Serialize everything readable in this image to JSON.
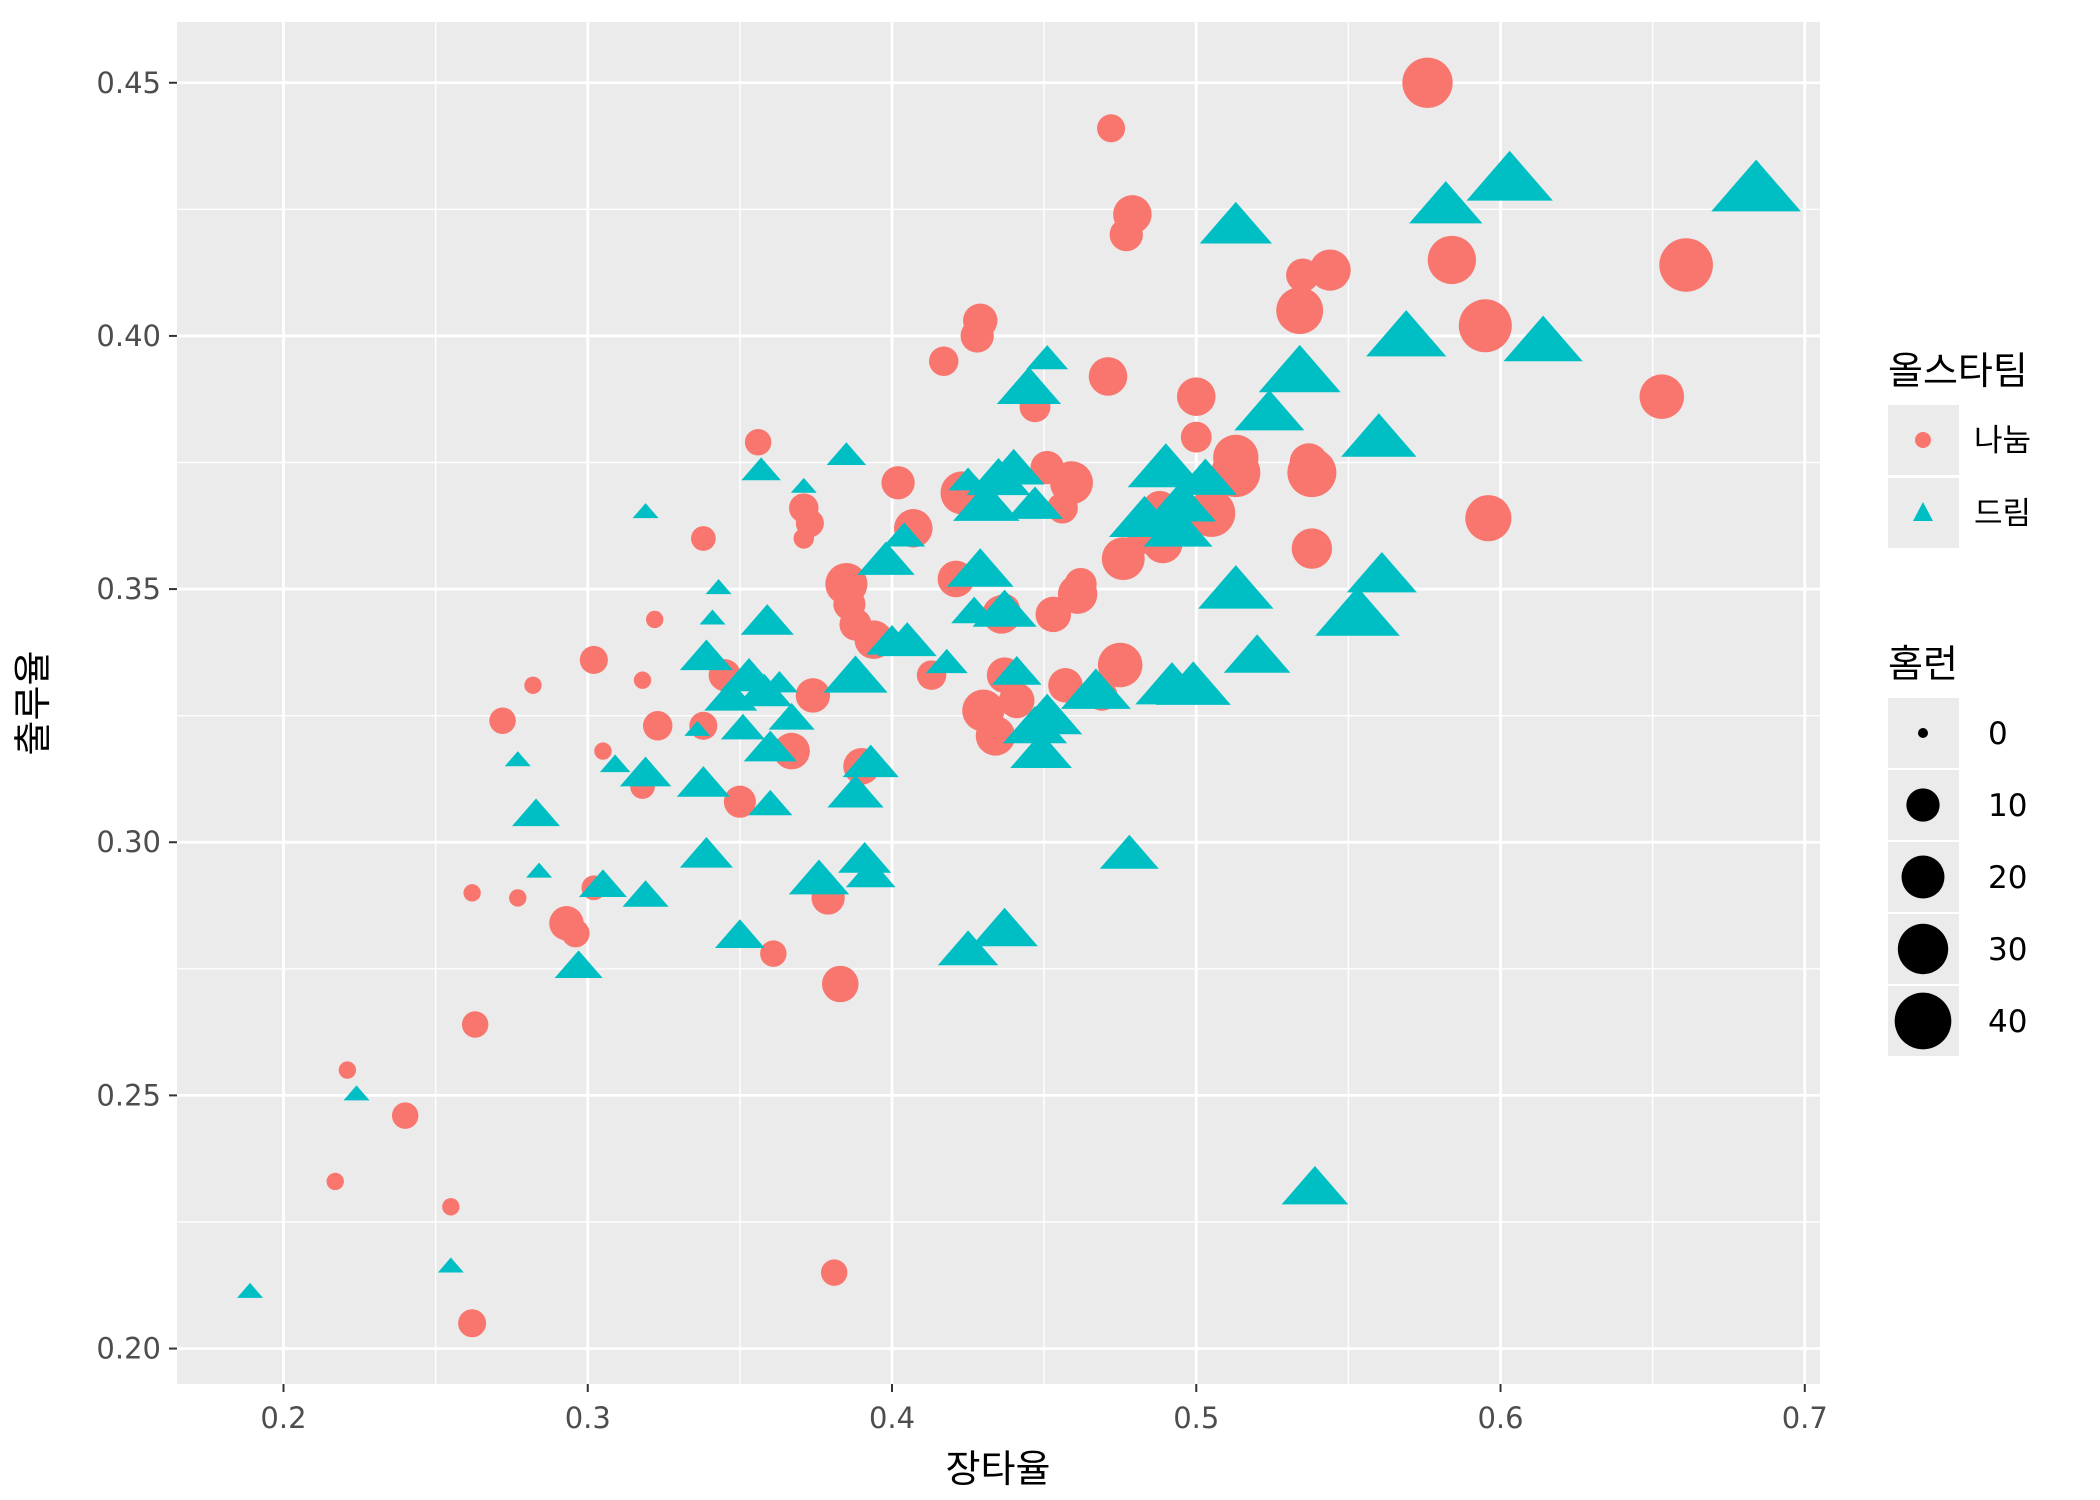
{
  "chart_data": {
    "type": "scatter",
    "title": "",
    "xlabel": "장타율",
    "ylabel": "출루율",
    "xlim": [
      0.165,
      0.705
    ],
    "ylim": [
      0.193,
      0.462
    ],
    "x_ticks": [
      0.2,
      0.3,
      0.4,
      0.5,
      0.6,
      0.7
    ],
    "x_tick_labels": [
      "0.2",
      "0.3",
      "0.4",
      "0.5",
      "0.6",
      "0.7"
    ],
    "y_ticks": [
      0.2,
      0.25,
      0.3,
      0.35,
      0.4,
      0.45
    ],
    "y_tick_labels": [
      "0.20",
      "0.25",
      "0.30",
      "0.35",
      "0.40",
      "0.45"
    ],
    "grid": true,
    "legend_position": "right",
    "color_legend": {
      "title": "올스타팀",
      "entries": [
        {
          "label": "나눔",
          "shape": "circle",
          "color": "#F8766D"
        },
        {
          "label": "드림",
          "shape": "triangle",
          "color": "#00BFC4"
        }
      ]
    },
    "size_legend": {
      "title": "홈런",
      "entries": [
        {
          "label": "0",
          "value": 0
        },
        {
          "label": "10",
          "value": 10
        },
        {
          "label": "20",
          "value": 20
        },
        {
          "label": "30",
          "value": 30
        },
        {
          "label": "40",
          "value": 40
        }
      ]
    },
    "series": [
      {
        "name": "나눔",
        "shape": "circle",
        "color": "#F8766D",
        "points": [
          [
            0.576,
            0.45,
            30
          ],
          [
            0.472,
            0.441,
            6
          ],
          [
            0.479,
            0.424,
            15
          ],
          [
            0.477,
            0.42,
            10
          ],
          [
            0.544,
            0.413,
            18
          ],
          [
            0.535,
            0.412,
            10
          ],
          [
            0.584,
            0.415,
            27
          ],
          [
            0.661,
            0.414,
            35
          ],
          [
            0.534,
            0.405,
            25
          ],
          [
            0.595,
            0.402,
            34
          ],
          [
            0.429,
            0.403,
            11
          ],
          [
            0.428,
            0.4,
            10
          ],
          [
            0.417,
            0.395,
            7
          ],
          [
            0.471,
            0.392,
            15
          ],
          [
            0.5,
            0.388,
            15
          ],
          [
            0.653,
            0.388,
            22
          ],
          [
            0.447,
            0.386,
            8
          ],
          [
            0.5,
            0.38,
            8
          ],
          [
            0.356,
            0.379,
            5
          ],
          [
            0.513,
            0.376,
            23
          ],
          [
            0.537,
            0.375,
            15
          ],
          [
            0.538,
            0.373,
            28
          ],
          [
            0.513,
            0.373,
            28
          ],
          [
            0.451,
            0.374,
            10
          ],
          [
            0.402,
            0.371,
            10
          ],
          [
            0.459,
            0.371,
            20
          ],
          [
            0.423,
            0.369,
            20
          ],
          [
            0.371,
            0.366,
            7
          ],
          [
            0.456,
            0.366,
            8
          ],
          [
            0.488,
            0.366,
            11
          ],
          [
            0.505,
            0.365,
            26
          ],
          [
            0.596,
            0.364,
            24
          ],
          [
            0.373,
            0.363,
            6
          ],
          [
            0.407,
            0.362,
            15
          ],
          [
            0.489,
            0.359,
            16
          ],
          [
            0.484,
            0.361,
            18
          ],
          [
            0.338,
            0.36,
            4
          ],
          [
            0.371,
            0.36,
            2
          ],
          [
            0.538,
            0.358,
            17
          ],
          [
            0.476,
            0.356,
            20
          ],
          [
            0.421,
            0.352,
            13
          ],
          [
            0.385,
            0.351,
            19
          ],
          [
            0.462,
            0.351,
            9
          ],
          [
            0.461,
            0.349,
            16
          ],
          [
            0.386,
            0.347,
            9
          ],
          [
            0.437,
            0.346,
            8
          ],
          [
            0.453,
            0.345,
            12
          ],
          [
            0.388,
            0.343,
            9
          ],
          [
            0.394,
            0.34,
            15
          ],
          [
            0.436,
            0.345,
            15
          ],
          [
            0.322,
            0.344,
            1
          ],
          [
            0.302,
            0.336,
            6
          ],
          [
            0.475,
            0.335,
            22
          ],
          [
            0.413,
            0.333,
            7
          ],
          [
            0.345,
            0.333,
            9
          ],
          [
            0.437,
            0.333,
            12
          ],
          [
            0.318,
            0.332,
            1
          ],
          [
            0.457,
            0.331,
            11
          ],
          [
            0.282,
            0.331,
            1
          ],
          [
            0.374,
            0.329,
            11
          ],
          [
            0.469,
            0.329,
            8
          ],
          [
            0.441,
            0.328,
            12
          ],
          [
            0.43,
            0.326,
            19
          ],
          [
            0.272,
            0.324,
            5
          ],
          [
            0.323,
            0.323,
            7
          ],
          [
            0.338,
            0.323,
            6
          ],
          [
            0.434,
            0.321,
            16
          ],
          [
            0.367,
            0.318,
            13
          ],
          [
            0.305,
            0.318,
            1
          ],
          [
            0.39,
            0.315,
            13
          ],
          [
            0.318,
            0.311,
            4
          ],
          [
            0.35,
            0.308,
            9
          ],
          [
            0.302,
            0.291,
            4
          ],
          [
            0.262,
            0.29,
            1
          ],
          [
            0.277,
            0.289,
            1
          ],
          [
            0.379,
            0.289,
            10
          ],
          [
            0.293,
            0.284,
            11
          ],
          [
            0.296,
            0.282,
            6
          ],
          [
            0.361,
            0.278,
            5
          ],
          [
            0.383,
            0.272,
            13
          ],
          [
            0.263,
            0.264,
            5
          ],
          [
            0.221,
            0.255,
            1
          ],
          [
            0.24,
            0.246,
            5
          ],
          [
            0.217,
            0.233,
            1
          ],
          [
            0.255,
            0.228,
            1
          ],
          [
            0.381,
            0.215,
            5
          ],
          [
            0.262,
            0.205,
            6
          ]
        ]
      },
      {
        "name": "드림",
        "shape": "triangle",
        "color": "#00BFC4",
        "points": [
          [
            0.603,
            0.43,
            42
          ],
          [
            0.684,
            0.428,
            46
          ],
          [
            0.582,
            0.425,
            28
          ],
          [
            0.513,
            0.421,
            27
          ],
          [
            0.569,
            0.399,
            35
          ],
          [
            0.614,
            0.398,
            34
          ],
          [
            0.451,
            0.395,
            6
          ],
          [
            0.534,
            0.392,
            37
          ],
          [
            0.445,
            0.389,
            20
          ],
          [
            0.524,
            0.384,
            25
          ],
          [
            0.56,
            0.379,
            30
          ],
          [
            0.385,
            0.376,
            5
          ],
          [
            0.44,
            0.373,
            18
          ],
          [
            0.435,
            0.371,
            20
          ],
          [
            0.49,
            0.373,
            31
          ],
          [
            0.503,
            0.371,
            19
          ],
          [
            0.425,
            0.371,
            5
          ],
          [
            0.357,
            0.373,
            5
          ],
          [
            0.371,
            0.37,
            1
          ],
          [
            0.431,
            0.366,
            22
          ],
          [
            0.447,
            0.366,
            14
          ],
          [
            0.495,
            0.366,
            25
          ],
          [
            0.494,
            0.361,
            24
          ],
          [
            0.404,
            0.36,
            6
          ],
          [
            0.319,
            0.365,
            1
          ],
          [
            0.483,
            0.363,
            26
          ],
          [
            0.398,
            0.355,
            15
          ],
          [
            0.561,
            0.352,
            25
          ],
          [
            0.429,
            0.353,
            22
          ],
          [
            0.513,
            0.349,
            30
          ],
          [
            0.343,
            0.35,
            1
          ],
          [
            0.553,
            0.344,
            40
          ],
          [
            0.437,
            0.345,
            20
          ],
          [
            0.427,
            0.345,
            8
          ],
          [
            0.359,
            0.343,
            12
          ],
          [
            0.341,
            0.344,
            1
          ],
          [
            0.405,
            0.339,
            16
          ],
          [
            0.4,
            0.339,
            11
          ],
          [
            0.52,
            0.336,
            22
          ],
          [
            0.339,
            0.336,
            12
          ],
          [
            0.418,
            0.335,
            6
          ],
          [
            0.441,
            0.333,
            10
          ],
          [
            0.388,
            0.332,
            20
          ],
          [
            0.353,
            0.332,
            15
          ],
          [
            0.363,
            0.331,
            4
          ],
          [
            0.492,
            0.33,
            28
          ],
          [
            0.499,
            0.33,
            30
          ],
          [
            0.467,
            0.329,
            25
          ],
          [
            0.347,
            0.328,
            12
          ],
          [
            0.358,
            0.329,
            14
          ],
          [
            0.451,
            0.324,
            25
          ],
          [
            0.447,
            0.322,
            20
          ],
          [
            0.367,
            0.324,
            8
          ],
          [
            0.351,
            0.322,
            7
          ],
          [
            0.336,
            0.322,
            1
          ],
          [
            0.36,
            0.318,
            12
          ],
          [
            0.449,
            0.317,
            18
          ],
          [
            0.277,
            0.316,
            1
          ],
          [
            0.309,
            0.315,
            2
          ],
          [
            0.393,
            0.315,
            14
          ],
          [
            0.319,
            0.313,
            11
          ],
          [
            0.338,
            0.311,
            12
          ],
          [
            0.388,
            0.309,
            14
          ],
          [
            0.36,
            0.307,
            7
          ],
          [
            0.283,
            0.305,
            9
          ],
          [
            0.391,
            0.296,
            12
          ],
          [
            0.339,
            0.297,
            12
          ],
          [
            0.478,
            0.297,
            16
          ],
          [
            0.393,
            0.293,
            10
          ],
          [
            0.284,
            0.294,
            1
          ],
          [
            0.376,
            0.292,
            17
          ],
          [
            0.305,
            0.291,
            9
          ],
          [
            0.319,
            0.289,
            8
          ],
          [
            0.437,
            0.282,
            22
          ],
          [
            0.35,
            0.281,
            10
          ],
          [
            0.425,
            0.278,
            17
          ],
          [
            0.297,
            0.275,
            9
          ],
          [
            0.224,
            0.25,
            1
          ],
          [
            0.539,
            0.231,
            22
          ],
          [
            0.255,
            0.216,
            1
          ],
          [
            0.189,
            0.211,
            1
          ]
        ]
      }
    ]
  }
}
